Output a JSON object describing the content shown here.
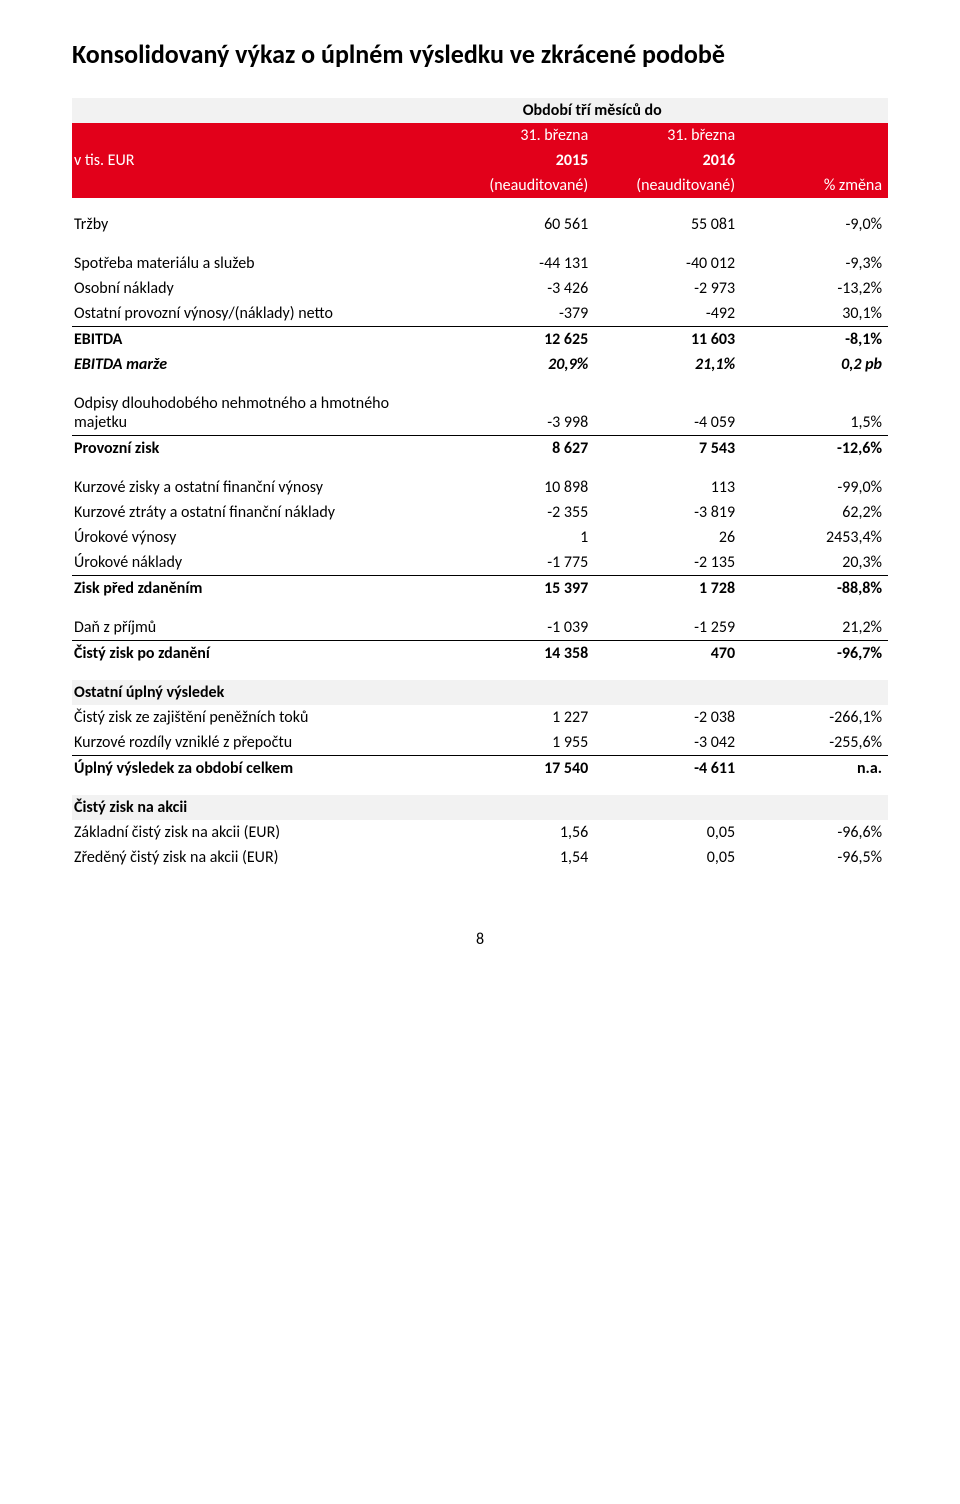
{
  "title": "Konsolidovaný výkaz o úplném výsledku ve zkrácené podobě",
  "header": {
    "period_label": "Období tří měsíců do",
    "col1_unit": "v tis. EUR",
    "col_a_top": "31. března",
    "col_a_mid": "2015",
    "col_a_bot": "(neauditované)",
    "col_b_top": "31. března",
    "col_b_mid": "2016",
    "col_b_bot": "(neauditované)",
    "col_c": "% změna"
  },
  "colors": {
    "accent": "#e2001a",
    "light": "#f2f2f2",
    "text": "#000000"
  },
  "rows": {
    "trzby": {
      "label": "Tržby",
      "a": "60 561",
      "b": "55 081",
      "c": "-9,0%"
    },
    "spot_mat": {
      "label": "Spotřeba materiálu a služeb",
      "a": "-44 131",
      "b": "-40 012",
      "c": "-9,3%"
    },
    "osobni": {
      "label": "Osobní náklady",
      "a": "-3 426",
      "b": "-2 973",
      "c": "-13,2%"
    },
    "ostatni_prov": {
      "label": "Ostatní provozní výnosy/(náklady) netto",
      "a": "-379",
      "b": "-492",
      "c": "30,1%"
    },
    "ebitda": {
      "label": "EBITDA",
      "a": "12 625",
      "b": "11 603",
      "c": "-8,1%"
    },
    "ebitda_marze": {
      "label": "EBITDA marže",
      "a": "20,9%",
      "b": "21,1%",
      "c": "0,2 pb"
    },
    "odpisy": {
      "label": "Odpisy dlouhodobého nehmotného a hmotného majetku",
      "a": "-3 998",
      "b": "-4 059",
      "c": "1,5%"
    },
    "prov_zisk": {
      "label": "Provozní zisk",
      "a": "8 627",
      "b": "7 543",
      "c": "-12,6%"
    },
    "kurz_zisky": {
      "label": "Kurzové zisky a ostatní finanční výnosy",
      "a": "10 898",
      "b": "113",
      "c": "-99,0%"
    },
    "kurz_ztraty": {
      "label": "Kurzové ztráty a ostatní finanční náklady",
      "a": "-2 355",
      "b": "-3 819",
      "c": "62,2%"
    },
    "urok_vynosy": {
      "label": "Úrokové výnosy",
      "a": "1",
      "b": "26",
      "c": "2453,4%"
    },
    "urok_naklady": {
      "label": "Úrokové náklady",
      "a": "-1 775",
      "b": "-2 135",
      "c": "20,3%"
    },
    "zisk_pred": {
      "label": "Zisk před zdaněním",
      "a": "15 397",
      "b": "1 728",
      "c": "-88,8%"
    },
    "dan": {
      "label": "Daň z příjmů",
      "a": "-1 039",
      "b": "-1 259",
      "c": "21,2%"
    },
    "cisty_po": {
      "label": "Čistý zisk po zdanění",
      "a": "14 358",
      "b": "470",
      "c": "-96,7%"
    },
    "ost_uplny_head": {
      "label": "Ostatní úplný výsledek"
    },
    "cisty_zajist": {
      "label": "Čistý zisk ze zajištění peněžních toků",
      "a": "1 227",
      "b": "-2 038",
      "c": "-266,1%"
    },
    "kurz_rozdily": {
      "label": "Kurzové rozdíly vzniklé z přepočtu",
      "a": "1 955",
      "b": "-3 042",
      "c": "-255,6%"
    },
    "uplny_celkem": {
      "label": "Úplný výsledek za období celkem",
      "a": "17 540",
      "b": "-4 611",
      "c": "n.a."
    },
    "cisty_na_akcii_head": {
      "label": "Čistý zisk na akcii"
    },
    "zakladni_eps": {
      "label": "Základní čistý zisk na akcii (EUR)",
      "a": "1,56",
      "b": "0,05",
      "c": "-96,6%"
    },
    "zredeny_eps": {
      "label": "Zředěný čistý zisk na akcii (EUR)",
      "a": "1,54",
      "b": "0,05",
      "c": "-96,5%"
    }
  },
  "page_number": "8"
}
